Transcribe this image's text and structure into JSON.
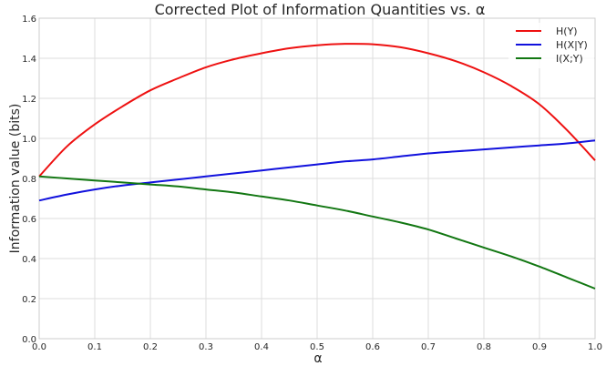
{
  "chart_data": {
    "type": "line",
    "title": "Corrected Plot of Information Quantities vs. α",
    "xlabel": "α",
    "ylabel": "Information value (bits)",
    "xlim": [
      0.0,
      1.0
    ],
    "ylim": [
      0.0,
      1.6
    ],
    "xticks": [
      "0.0",
      "0.1",
      "0.2",
      "0.3",
      "0.4",
      "0.5",
      "0.6",
      "0.7",
      "0.8",
      "0.9",
      "1.0"
    ],
    "yticks": [
      "0.0",
      "0.2",
      "0.4",
      "0.6",
      "0.8",
      "1.0",
      "1.2",
      "1.4",
      "1.6"
    ],
    "grid": true,
    "legend_position": "top-right",
    "x": [
      0.0,
      0.05,
      0.1,
      0.15,
      0.2,
      0.25,
      0.3,
      0.35,
      0.4,
      0.45,
      0.5,
      0.55,
      0.6,
      0.65,
      0.7,
      0.75,
      0.8,
      0.85,
      0.9,
      0.95,
      1.0
    ],
    "series": [
      {
        "name": "H(Y)",
        "color": "#ee1111",
        "values": [
          0.81,
          0.96,
          1.07,
          1.16,
          1.24,
          1.3,
          1.355,
          1.395,
          1.425,
          1.45,
          1.465,
          1.472,
          1.47,
          1.455,
          1.425,
          1.385,
          1.33,
          1.26,
          1.17,
          1.04,
          0.89
        ]
      },
      {
        "name": "H(X|Y)",
        "color": "#1111dd",
        "values": [
          0.69,
          0.72,
          0.745,
          0.765,
          0.78,
          0.795,
          0.81,
          0.825,
          0.84,
          0.855,
          0.87,
          0.885,
          0.895,
          0.91,
          0.925,
          0.935,
          0.945,
          0.955,
          0.965,
          0.975,
          0.99
        ]
      },
      {
        "name": "I(X;Y)",
        "color": "#127712",
        "values": [
          0.81,
          0.8,
          0.79,
          0.78,
          0.77,
          0.76,
          0.745,
          0.73,
          0.71,
          0.69,
          0.665,
          0.64,
          0.61,
          0.58,
          0.545,
          0.5,
          0.455,
          0.41,
          0.36,
          0.305,
          0.25
        ]
      }
    ]
  }
}
